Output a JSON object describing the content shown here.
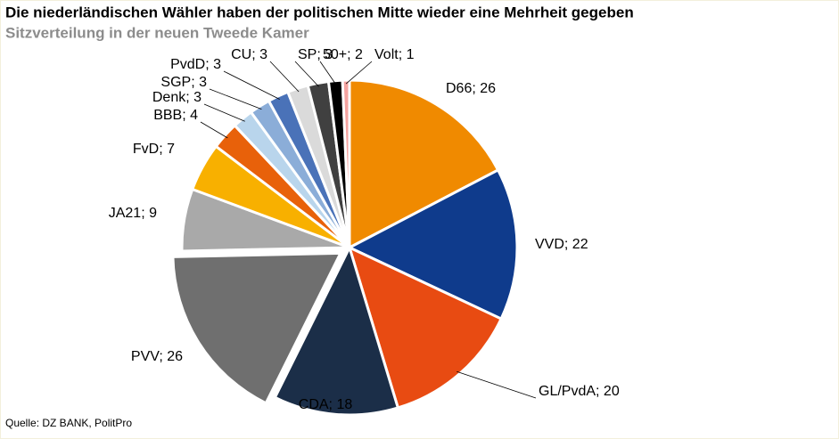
{
  "chart_data": {
    "type": "pie",
    "title": "Die niederländischen Wähler haben der politischen Mitte wieder eine Mehrheit gegeben",
    "subtitle": "Sitzverteilung in der neuen Tweede Kamer",
    "source": "Quelle: DZ BANK, PolitPro",
    "values": [
      26,
      22,
      20,
      18,
      26,
      9,
      7,
      4,
      3,
      3,
      3,
      3,
      3,
      2,
      1
    ],
    "value_labels": [
      "D66; 26",
      "VVD; 22",
      "GL/PvdA; 20",
      "CDA; 18",
      "PVV; 26",
      "JA21; 9",
      "FvD; 7",
      "BBB; 4",
      "Denk; 3",
      "SGP; 3",
      "PvdD; 3",
      "CU; 3",
      "SP; 3",
      "50+; 2",
      "Volt; 1"
    ],
    "colors": [
      "#f08a00",
      "#0f3b8c",
      "#e84b12",
      "#1b2e48",
      "#6f6f6f",
      "#a9a9a9",
      "#f8b000",
      "#e8610a",
      "#b9d5ec",
      "#8badd8",
      "#4a72b8",
      "#dadada",
      "#404040",
      "#000000",
      "#f4a3a0"
    ]
  }
}
